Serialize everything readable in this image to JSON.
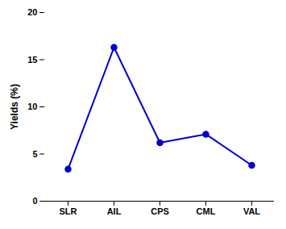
{
  "chart_data": {
    "type": "line",
    "categories": [
      "SLR",
      "AIL",
      "CPS",
      "CML",
      "VAL"
    ],
    "values": [
      3.4,
      16.3,
      6.2,
      7.1,
      3.8
    ],
    "color": "#0000CC",
    "marker": "circle",
    "ylabel": "Yields (%)",
    "ylim": [
      0,
      20
    ],
    "yticks": [
      0,
      5,
      10,
      15,
      20
    ],
    "grid": false
  }
}
